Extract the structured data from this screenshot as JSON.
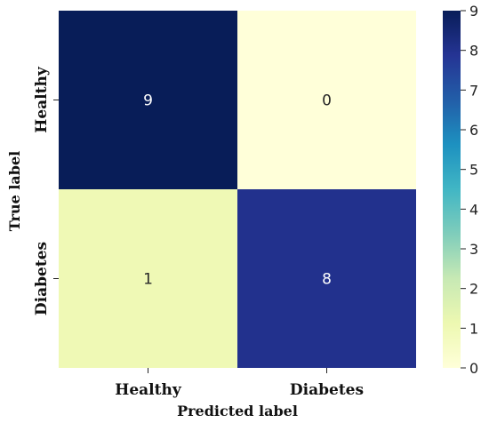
{
  "chart_data": {
    "type": "heatmap",
    "title": "",
    "xlabel": "Predicted label",
    "ylabel": "True label",
    "x_categories": [
      "Healthy",
      "Diabetes"
    ],
    "y_categories": [
      "Healthy",
      "Diabetes"
    ],
    "values": [
      [
        9,
        0
      ],
      [
        1,
        8
      ]
    ],
    "colorbar": {
      "min": 0,
      "max": 9,
      "ticks": [
        0,
        1,
        2,
        3,
        4,
        5,
        6,
        7,
        8,
        9
      ],
      "colormap": "YlGnBu",
      "stops": [
        "#ffffd9",
        "#edf8b1",
        "#c7e9b4",
        "#7fcdbb",
        "#41b6c4",
        "#1d91c0",
        "#225ea8",
        "#253494",
        "#081d58"
      ]
    }
  }
}
